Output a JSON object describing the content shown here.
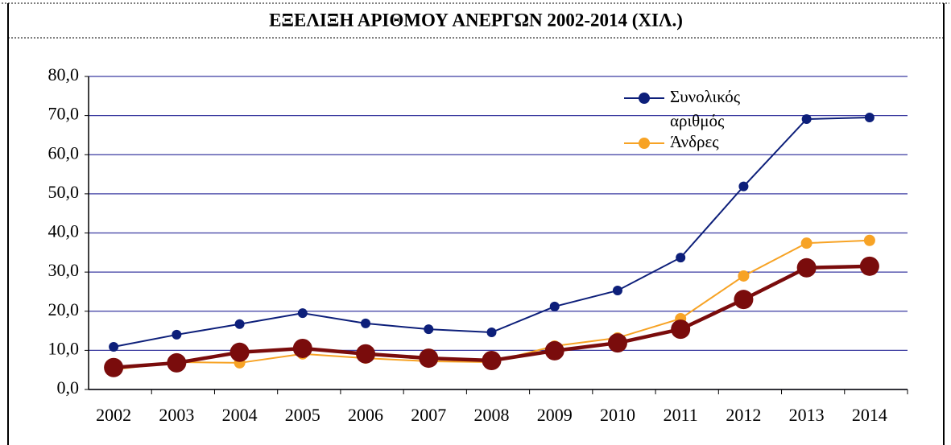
{
  "chart_data": {
    "type": "line",
    "title": "ΕΞΕΛΙΞΗ ΑΡΙΘΜΟΥ ΑΝΕΡΓΩΝ 2002-2014 (ΧΙΛ.)",
    "categories": [
      "2002",
      "2003",
      "2004",
      "2005",
      "2006",
      "2007",
      "2008",
      "2009",
      "2010",
      "2011",
      "2012",
      "2013",
      "2014"
    ],
    "series": [
      {
        "name": "Συνολικός αριθμός",
        "color": "#0d1f7a",
        "values": [
          10.9,
          14.0,
          16.7,
          19.5,
          16.9,
          15.4,
          14.6,
          21.2,
          25.3,
          33.7,
          51.9,
          69.1,
          69.5
        ]
      },
      {
        "name": "Άνδρες",
        "color": "#f7a325",
        "values": [
          5.1,
          7.0,
          6.8,
          9.1,
          8.0,
          7.2,
          7.0,
          11.1,
          13.2,
          18.1,
          29.0,
          37.4,
          38.1
        ]
      },
      {
        "color": "#7a0c0c",
        "values": [
          5.6,
          6.8,
          9.5,
          10.5,
          9.1,
          8.0,
          7.4,
          9.9,
          11.9,
          15.4,
          23.0,
          31.1,
          31.5
        ]
      }
    ],
    "ylim": [
      0,
      80
    ],
    "yticks": [
      {
        "value": 0,
        "label": "0,0"
      },
      {
        "value": 10,
        "label": "10,0"
      },
      {
        "value": 20,
        "label": "20,0"
      },
      {
        "value": 30,
        "label": "30,0"
      },
      {
        "value": 40,
        "label": "40,0"
      },
      {
        "value": 50,
        "label": "50,0"
      },
      {
        "value": 60,
        "label": "60,0"
      },
      {
        "value": 70,
        "label": "70,0"
      },
      {
        "value": 80,
        "label": "80,0"
      }
    ],
    "grid": true,
    "legend": "upper right"
  }
}
